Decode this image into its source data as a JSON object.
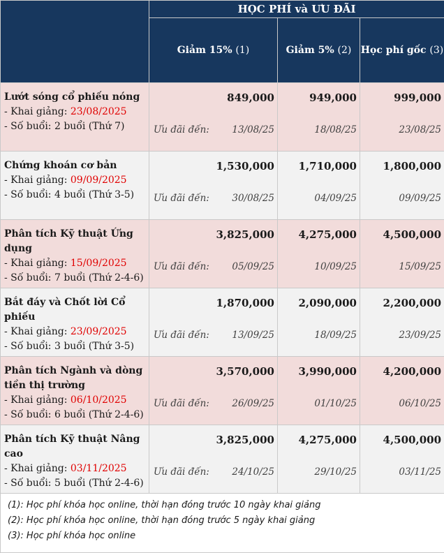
{
  "header": {
    "title": "HỌC PHÍ  và ƯU ĐÃI",
    "columns": [
      {
        "label": "Giảm 15%",
        "mark": "(1)"
      },
      {
        "label": "Giảm 5%",
        "mark": "(2)"
      },
      {
        "label": "Học phí gốc",
        "mark": "(3)"
      }
    ]
  },
  "courses": [
    {
      "name": "Lướt sóng cổ phiếu nóng",
      "start_label": "- Khai giảng: ",
      "start_date": "23/08/2025",
      "sessions": "- Số buổi: 2 buổi (Thứ 7)",
      "deadline_label": "Ưu đãi đến:",
      "price15": "849,000",
      "price5": "949,000",
      "price_full": "999,000",
      "until15": "13/08/25",
      "until5": "18/08/25",
      "until_full": "23/08/25"
    },
    {
      "name": "Chứng khoán cơ bản",
      "start_label": "- Khai giảng: ",
      "start_date": "09/09/2025",
      "sessions": "- Số buổi: 4 buổi (Thứ 3-5)",
      "deadline_label": "Ưu đãi đến:",
      "price15": "1,530,000",
      "price5": "1,710,000",
      "price_full": "1,800,000",
      "until15": "30/08/25",
      "until5": "04/09/25",
      "until_full": "09/09/25"
    },
    {
      "name": "Phân tích Kỹ thuật Ứng dụng",
      "start_label": "- Khai giảng: ",
      "start_date": "15/09/2025",
      "sessions": "- Số buổi: 7 buổi (Thứ 2-4-6)",
      "deadline_label": "Ưu đãi đến:",
      "price15": "3,825,000",
      "price5": "4,275,000",
      "price_full": "4,500,000",
      "until15": "05/09/25",
      "until5": "10/09/25",
      "until_full": "15/09/25"
    },
    {
      "name": "Bắt đáy và Chốt lời Cổ phiếu",
      "start_label": "- Khai giảng: ",
      "start_date": "23/09/2025",
      "sessions": "- Số buổi: 3 buổi (Thứ 3-5)",
      "deadline_label": "Ưu đãi đến:",
      "price15": "1,870,000",
      "price5": "2,090,000",
      "price_full": "2,200,000",
      "until15": "13/09/25",
      "until5": "18/09/25",
      "until_full": "23/09/25"
    },
    {
      "name": "Phân tích Ngành và dòng tiền thị trường",
      "start_label": "- Khai giảng: ",
      "start_date": "06/10/2025",
      "sessions": "- Số buổi: 6 buổi (Thứ 2-4-6)",
      "deadline_label": "Ưu đãi đến:",
      "price15": "3,570,000",
      "price5": "3,990,000",
      "price_full": "4,200,000",
      "until15": "26/09/25",
      "until5": "01/10/25",
      "until_full": "06/10/25"
    },
    {
      "name": "Phân tích Kỹ thuật Nâng cao",
      "start_label": "- Khai giảng: ",
      "start_date": "03/11/2025",
      "sessions": "- Số buổi: 5 buổi (Thứ 2-4-6)",
      "deadline_label": "Ưu đãi đến:",
      "price15": "3,825,000",
      "price5": "4,275,000",
      "price_full": "4,500,000",
      "until15": "24/10/25",
      "until5": "29/10/25",
      "until_full": "03/11/25"
    }
  ],
  "notes": [
    "(1): Học phí khóa học online, thời hạn đóng trước 10 ngày khai giảng",
    "(2): Học phí khóa học online, thời hạn đóng trước 5 ngày khai giảng",
    "(3): Học phí khóa học online"
  ],
  "colors": {
    "header_bg": "#17375e",
    "row_pink": "#f2dcdb",
    "row_gray": "#f2f2f2",
    "date_red": "#e00000"
  }
}
